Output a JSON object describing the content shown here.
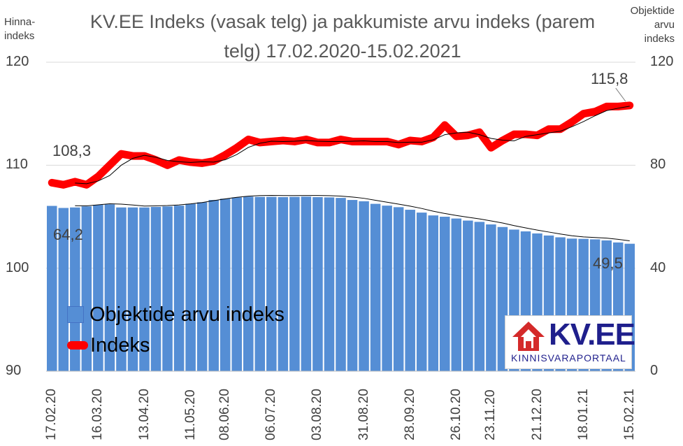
{
  "chart_data": {
    "type": "bar",
    "title": "KV.EE Indeks (vasak telg) ja pakkumiste arvu indeks (parem telg) 17.02.2020-15.02.2021",
    "title_lines": [
      "KV.EE Indeks (vasak telg) ja pakkumiste arvu indeks (parem",
      "telg) 17.02.2020-15.02.2021"
    ],
    "left_axis_title": [
      "Hinna-",
      "indeks"
    ],
    "right_axis_title": [
      "Objektide",
      "arvu",
      "indeks"
    ],
    "left_ylim": [
      90,
      120
    ],
    "left_ticks": [
      "90",
      "100",
      "110",
      "120"
    ],
    "right_ylim": [
      0,
      120
    ],
    "right_ticks": [
      "0",
      "40",
      "80",
      "120"
    ],
    "x_tick_labels": [
      "17.02.20",
      "16.03.20",
      "13.04.20",
      "11.05.20",
      "08.06.20",
      "06.07.20",
      "03.08.20",
      "31.08.20",
      "28.09.20",
      "26.10.20",
      "23.11.20",
      "21.12.20",
      "18.01.21",
      "15.02.21"
    ],
    "series": [
      {
        "name": "Objektide arvu indeks",
        "axis": "right",
        "color": "#558ED5",
        "values": [
          64.2,
          63.4,
          63.6,
          64.0,
          64.6,
          64.8,
          63.6,
          63.6,
          63.6,
          63.8,
          64.0,
          64.3,
          65.0,
          65.6,
          66.5,
          67.0,
          67.5,
          67.8,
          67.7,
          67.7,
          67.6,
          67.7,
          67.8,
          67.6,
          67.5,
          67.3,
          66.5,
          66.0,
          65.0,
          64.3,
          63.7,
          62.7,
          61.6,
          60.5,
          60.0,
          59.3,
          58.5,
          58.0,
          57.0,
          56.0,
          55.0,
          54.3,
          53.5,
          52.7,
          52.0,
          51.5,
          51.4,
          51.2,
          50.8,
          50.0,
          49.5
        ]
      },
      {
        "name": "Indeks",
        "axis": "left",
        "color": "#FF0000",
        "values": [
          108.3,
          108.1,
          108.4,
          108.1,
          108.9,
          110.0,
          111.1,
          110.9,
          110.9,
          110.5,
          110.0,
          110.5,
          110.3,
          110.2,
          110.4,
          111.0,
          111.7,
          112.5,
          112.2,
          112.3,
          112.4,
          112.3,
          112.5,
          112.2,
          112.2,
          112.5,
          112.3,
          112.3,
          112.3,
          112.3,
          112.0,
          112.4,
          112.3,
          112.7,
          113.9,
          112.8,
          112.9,
          113.2,
          111.7,
          112.4,
          113.0,
          113.0,
          112.9,
          113.5,
          113.5,
          114.2,
          115.0,
          115.2,
          115.7,
          115.7,
          115.8
        ]
      }
    ],
    "data_labels": [
      {
        "series": "Indeks",
        "point": "first",
        "text": "108,3"
      },
      {
        "series": "Indeks",
        "point": "last",
        "text": "115,8"
      },
      {
        "series": "Objektide arvu indeks",
        "point": "first",
        "text": "64,2"
      },
      {
        "series": "Objektide arvu indeks",
        "point": "last",
        "text": "49,5"
      }
    ],
    "trendlines": "thin black moving-average lines on both series",
    "legend_placement": "bottom-left",
    "grid": "horizontal"
  },
  "logo": {
    "brand": "KV.EE",
    "tagline": "KINNISVARAPORTAAL"
  }
}
